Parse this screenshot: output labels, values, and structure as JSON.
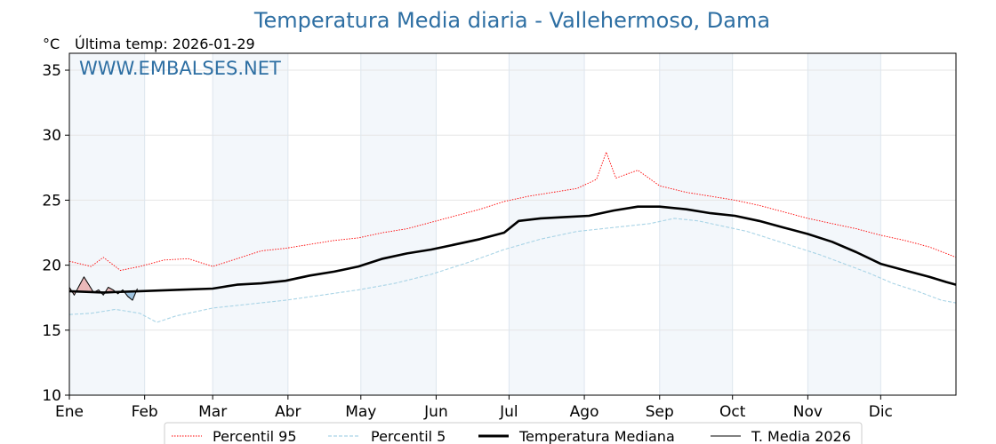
{
  "chart_data": {
    "type": "line",
    "title": "Temperatura Media diaria - Vallehermoso, Dama",
    "ylabel": "°C",
    "subtitle": "Última temp: 2026-01-29",
    "watermark": "WWW.EMBALSES.NET",
    "ylim": [
      10,
      36.3
    ],
    "yticks": [
      10,
      15,
      20,
      25,
      30,
      35
    ],
    "xlim": [
      1,
      366
    ],
    "months": [
      "Ene",
      "Feb",
      "Mar",
      "Abr",
      "May",
      "Jun",
      "Jul",
      "Ago",
      "Sep",
      "Oct",
      "Nov",
      "Dic"
    ],
    "month_start_days": [
      1,
      32,
      60,
      91,
      121,
      152,
      182,
      213,
      244,
      274,
      305,
      335
    ],
    "shaded_months": [
      0,
      2,
      4,
      6,
      8,
      10
    ],
    "series": [
      {
        "name": "Percentil 95",
        "color": "#ff0000",
        "style": "dotted",
        "points": [
          [
            1,
            20.3
          ],
          [
            10,
            19.9
          ],
          [
            15,
            20.6
          ],
          [
            22,
            19.6
          ],
          [
            30,
            19.9
          ],
          [
            40,
            20.4
          ],
          [
            50,
            20.5
          ],
          [
            60,
            19.9
          ],
          [
            70,
            20.5
          ],
          [
            80,
            21.1
          ],
          [
            90,
            21.3
          ],
          [
            100,
            21.6
          ],
          [
            110,
            21.9
          ],
          [
            120,
            22.1
          ],
          [
            130,
            22.5
          ],
          [
            140,
            22.8
          ],
          [
            150,
            23.3
          ],
          [
            160,
            23.8
          ],
          [
            170,
            24.3
          ],
          [
            180,
            24.9
          ],
          [
            190,
            25.3
          ],
          [
            200,
            25.6
          ],
          [
            210,
            25.9
          ],
          [
            218,
            26.6
          ],
          [
            222,
            28.7
          ],
          [
            226,
            26.7
          ],
          [
            235,
            27.3
          ],
          [
            244,
            26.1
          ],
          [
            255,
            25.6
          ],
          [
            265,
            25.3
          ],
          [
            275,
            25.0
          ],
          [
            285,
            24.6
          ],
          [
            295,
            24.1
          ],
          [
            305,
            23.6
          ],
          [
            315,
            23.2
          ],
          [
            325,
            22.8
          ],
          [
            335,
            22.3
          ],
          [
            345,
            21.9
          ],
          [
            355,
            21.4
          ],
          [
            362,
            20.9
          ],
          [
            366,
            20.6
          ]
        ]
      },
      {
        "name": "Percentil 5",
        "color": "#a9d4e6",
        "style": "dashed",
        "points": [
          [
            1,
            16.2
          ],
          [
            10,
            16.3
          ],
          [
            20,
            16.6
          ],
          [
            30,
            16.3
          ],
          [
            37,
            15.6
          ],
          [
            45,
            16.1
          ],
          [
            60,
            16.7
          ],
          [
            75,
            17.0
          ],
          [
            90,
            17.3
          ],
          [
            105,
            17.7
          ],
          [
            120,
            18.1
          ],
          [
            135,
            18.6
          ],
          [
            150,
            19.3
          ],
          [
            165,
            20.2
          ],
          [
            180,
            21.2
          ],
          [
            195,
            22.0
          ],
          [
            210,
            22.6
          ],
          [
            225,
            22.9
          ],
          [
            240,
            23.2
          ],
          [
            250,
            23.6
          ],
          [
            260,
            23.4
          ],
          [
            270,
            23.0
          ],
          [
            280,
            22.6
          ],
          [
            290,
            22.0
          ],
          [
            300,
            21.4
          ],
          [
            310,
            20.8
          ],
          [
            320,
            20.1
          ],
          [
            330,
            19.4
          ],
          [
            340,
            18.6
          ],
          [
            350,
            18.0
          ],
          [
            360,
            17.3
          ],
          [
            366,
            17.1
          ]
        ]
      },
      {
        "name": "Temperatura Mediana",
        "color": "#000000",
        "style": "solid-thick",
        "points": [
          [
            1,
            18.0
          ],
          [
            15,
            17.9
          ],
          [
            30,
            18.0
          ],
          [
            45,
            18.1
          ],
          [
            60,
            18.2
          ],
          [
            70,
            18.5
          ],
          [
            80,
            18.6
          ],
          [
            90,
            18.8
          ],
          [
            100,
            19.2
          ],
          [
            110,
            19.5
          ],
          [
            120,
            19.9
          ],
          [
            130,
            20.5
          ],
          [
            140,
            20.9
          ],
          [
            150,
            21.2
          ],
          [
            160,
            21.6
          ],
          [
            170,
            22.0
          ],
          [
            180,
            22.5
          ],
          [
            186,
            23.4
          ],
          [
            195,
            23.6
          ],
          [
            205,
            23.7
          ],
          [
            215,
            23.8
          ],
          [
            225,
            24.2
          ],
          [
            235,
            24.5
          ],
          [
            244,
            24.5
          ],
          [
            255,
            24.3
          ],
          [
            265,
            24.0
          ],
          [
            275,
            23.8
          ],
          [
            285,
            23.4
          ],
          [
            295,
            22.9
          ],
          [
            305,
            22.4
          ],
          [
            315,
            21.8
          ],
          [
            325,
            21.0
          ],
          [
            335,
            20.1
          ],
          [
            345,
            19.6
          ],
          [
            355,
            19.1
          ],
          [
            362,
            18.7
          ],
          [
            366,
            18.5
          ]
        ]
      },
      {
        "name": "T. Media 2026",
        "color": "#000000",
        "style": "solid-thin",
        "points": [
          [
            1,
            18.3
          ],
          [
            3,
            17.7
          ],
          [
            5,
            18.4
          ],
          [
            7,
            19.1
          ],
          [
            9,
            18.5
          ],
          [
            11,
            17.9
          ],
          [
            13,
            18.1
          ],
          [
            15,
            17.7
          ],
          [
            17,
            18.3
          ],
          [
            19,
            18.1
          ],
          [
            21,
            17.8
          ],
          [
            23,
            18.1
          ],
          [
            25,
            17.6
          ],
          [
            27,
            17.3
          ],
          [
            29,
            18.2
          ]
        ]
      }
    ],
    "legend": [
      "Percentil 95",
      "Percentil 5",
      "Temperatura Mediana",
      "T. Media 2026"
    ]
  }
}
